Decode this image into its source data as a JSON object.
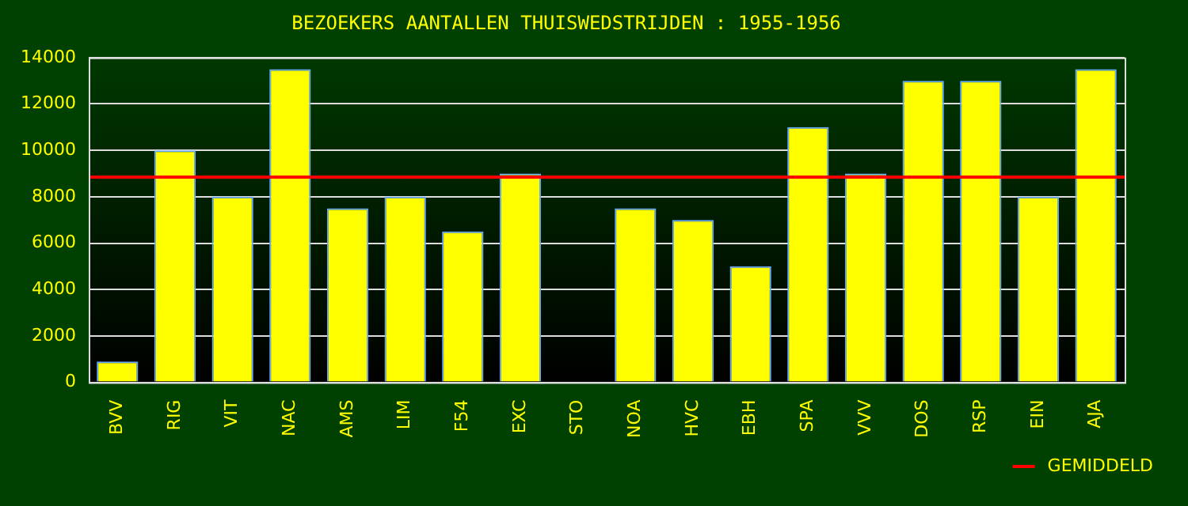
{
  "chart_data": {
    "type": "bar",
    "title": "BEZOEKERS AANTALLEN THUISWEDSTRIJDEN : 1955-1956",
    "categories": [
      "BVV",
      "RIG",
      "VIT",
      "NAC",
      "AMS",
      "LIM",
      "F54",
      "EXC",
      "STO",
      "NOA",
      "HVC",
      "EBH",
      "SPA",
      "VVV",
      "DOS",
      "RSP",
      "EIN",
      "AJA"
    ],
    "values": [
      900,
      10000,
      8000,
      13500,
      7500,
      8000,
      6500,
      9000,
      null,
      7500,
      7000,
      5000,
      11000,
      9000,
      13000,
      13000,
      8000,
      13500
    ],
    "color": "#ffff00",
    "ylim": [
      0,
      14000
    ],
    "yticks": [
      0,
      2000,
      4000,
      6000,
      8000,
      10000,
      12000,
      14000
    ],
    "grid": "y",
    "ref_lines": [
      {
        "axis": "y",
        "value": 8850,
        "label": "GEMIDDELD",
        "color": "#ff0000"
      }
    ],
    "legend": "bottom right"
  }
}
